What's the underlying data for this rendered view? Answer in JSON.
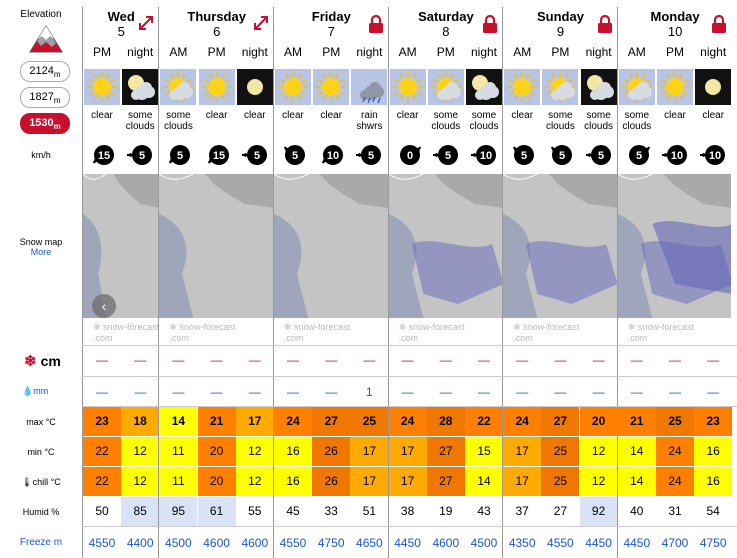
{
  "sidebar": {
    "elevation_title": "Elevation",
    "elevations": [
      {
        "value": "2124",
        "unit": "m",
        "active": false
      },
      {
        "value": "1827",
        "unit": "m",
        "active": false
      },
      {
        "value": "1530",
        "unit": "m",
        "active": true
      }
    ],
    "wind_unit": "km/h",
    "snow_map_label": "Snow map",
    "snow_map_more": "More",
    "snow_unit": "cm",
    "rain_unit": "mm",
    "max_label": "max °C",
    "min_label": "min °C",
    "chill_label": "chill °C",
    "humid_label": "Humid %",
    "freeze_label": "Freeze m"
  },
  "watermark": {
    "line1": "snow-forecast",
    "line2": ".com"
  },
  "days": [
    {
      "name": "Wed",
      "date": "5",
      "periods": [
        "PM",
        "night"
      ],
      "expand_icon": true,
      "wx": [
        "sun",
        "moon-cloud"
      ],
      "wx_text": [
        "clear",
        "some clouds"
      ],
      "wind": [
        {
          "v": "15",
          "dir": "down-left"
        },
        {
          "v": "5",
          "dir": "left"
        }
      ],
      "snow": [
        "—",
        "—"
      ],
      "rain": [
        "—",
        "—"
      ],
      "max": [
        23,
        18
      ],
      "min": [
        22,
        12
      ],
      "chill": [
        22,
        12
      ],
      "humid": [
        50,
        85
      ],
      "freeze": [
        4550,
        4400
      ]
    },
    {
      "name": "Thursday",
      "date": "6",
      "periods": [
        "AM",
        "PM",
        "night"
      ],
      "expand_icon": true,
      "wx": [
        "sun-cloud",
        "sun",
        "moon"
      ],
      "wx_text": [
        "some clouds",
        "clear",
        "clear"
      ],
      "wind": [
        {
          "v": "5",
          "dir": "down-left"
        },
        {
          "v": "15",
          "dir": "down-left"
        },
        {
          "v": "5",
          "dir": "left"
        }
      ],
      "snow": [
        "—",
        "—",
        "—"
      ],
      "rain": [
        "—",
        "—",
        "—"
      ],
      "max": [
        14,
        21,
        17
      ],
      "min": [
        11,
        20,
        12
      ],
      "chill": [
        11,
        20,
        12
      ],
      "humid": [
        95,
        61,
        55
      ],
      "freeze": [
        4500,
        4600,
        4600
      ]
    },
    {
      "name": "Friday",
      "date": "7",
      "periods": [
        "AM",
        "PM",
        "night"
      ],
      "lock_icon": true,
      "wx": [
        "sun",
        "sun",
        "rain-cloud"
      ],
      "wx_text": [
        "clear",
        "clear",
        "rain shwrs"
      ],
      "wind": [
        {
          "v": "5",
          "dir": "up-left"
        },
        {
          "v": "10",
          "dir": "down-left"
        },
        {
          "v": "5",
          "dir": "left"
        }
      ],
      "snow": [
        "—",
        "—",
        "—"
      ],
      "rain": [
        "—",
        "—",
        "1"
      ],
      "max": [
        24,
        27,
        25
      ],
      "min": [
        16,
        26,
        17
      ],
      "chill": [
        16,
        26,
        17
      ],
      "humid": [
        45,
        33,
        51
      ],
      "freeze": [
        4550,
        4750,
        4650
      ]
    },
    {
      "name": "Saturday",
      "date": "8",
      "periods": [
        "AM",
        "PM",
        "night"
      ],
      "lock_icon": true,
      "wx": [
        "sun",
        "sun-cloud",
        "moon-cloud"
      ],
      "wx_text": [
        "clear",
        "some clouds",
        "some clouds"
      ],
      "wind": [
        {
          "v": "0",
          "dir": "up-right"
        },
        {
          "v": "5",
          "dir": "right"
        },
        {
          "v": "10",
          "dir": "left"
        }
      ],
      "snow": [
        "—",
        "—",
        "—"
      ],
      "rain": [
        "—",
        "—",
        "—"
      ],
      "max": [
        24,
        28,
        22
      ],
      "min": [
        17,
        27,
        15
      ],
      "chill": [
        17,
        27,
        14
      ],
      "humid": [
        38,
        19,
        43
      ],
      "freeze": [
        4450,
        4600,
        4500
      ]
    },
    {
      "name": "Sunday",
      "date": "9",
      "periods": [
        "AM",
        "PM",
        "night"
      ],
      "lock_icon": true,
      "wx": [
        "sun",
        "sun-cloud",
        "moon-cloud"
      ],
      "wx_text": [
        "clear",
        "some clouds",
        "some clouds"
      ],
      "wind": [
        {
          "v": "5",
          "dir": "up-left"
        },
        {
          "v": "5",
          "dir": "up-left"
        },
        {
          "v": "5",
          "dir": "left"
        }
      ],
      "snow": [
        "—",
        "—",
        "—"
      ],
      "rain": [
        "—",
        "—",
        "—"
      ],
      "max": [
        24,
        27,
        20
      ],
      "min": [
        17,
        25,
        12
      ],
      "chill": [
        17,
        25,
        12
      ],
      "humid": [
        37,
        27,
        92
      ],
      "freeze": [
        4350,
        4550,
        4450
      ]
    },
    {
      "name": "Monday",
      "date": "10",
      "periods": [
        "AM",
        "PM",
        "night"
      ],
      "lock_icon": true,
      "wx": [
        "sun-cloud",
        "sun",
        "moon"
      ],
      "wx_text": [
        "some clouds",
        "clear",
        "clear"
      ],
      "wind": [
        {
          "v": "5",
          "dir": "up-right"
        },
        {
          "v": "10",
          "dir": "left"
        },
        {
          "v": "10",
          "dir": "left"
        }
      ],
      "snow": [
        "—",
        "—",
        "—"
      ],
      "rain": [
        "—",
        "—",
        "—"
      ],
      "max": [
        21,
        25,
        23
      ],
      "min": [
        14,
        24,
        16
      ],
      "chill": [
        14,
        24,
        16
      ],
      "humid": [
        40,
        31,
        54
      ],
      "freeze": [
        4450,
        4700,
        4750
      ]
    }
  ],
  "colors": {
    "hot": "#ff8000",
    "warm": "#ffaa00",
    "mild": "#ffff00",
    "hotter": "#f07800",
    "humid_high": "#d9e3f5",
    "accent": "#c8102e",
    "link": "#1a55d6"
  }
}
